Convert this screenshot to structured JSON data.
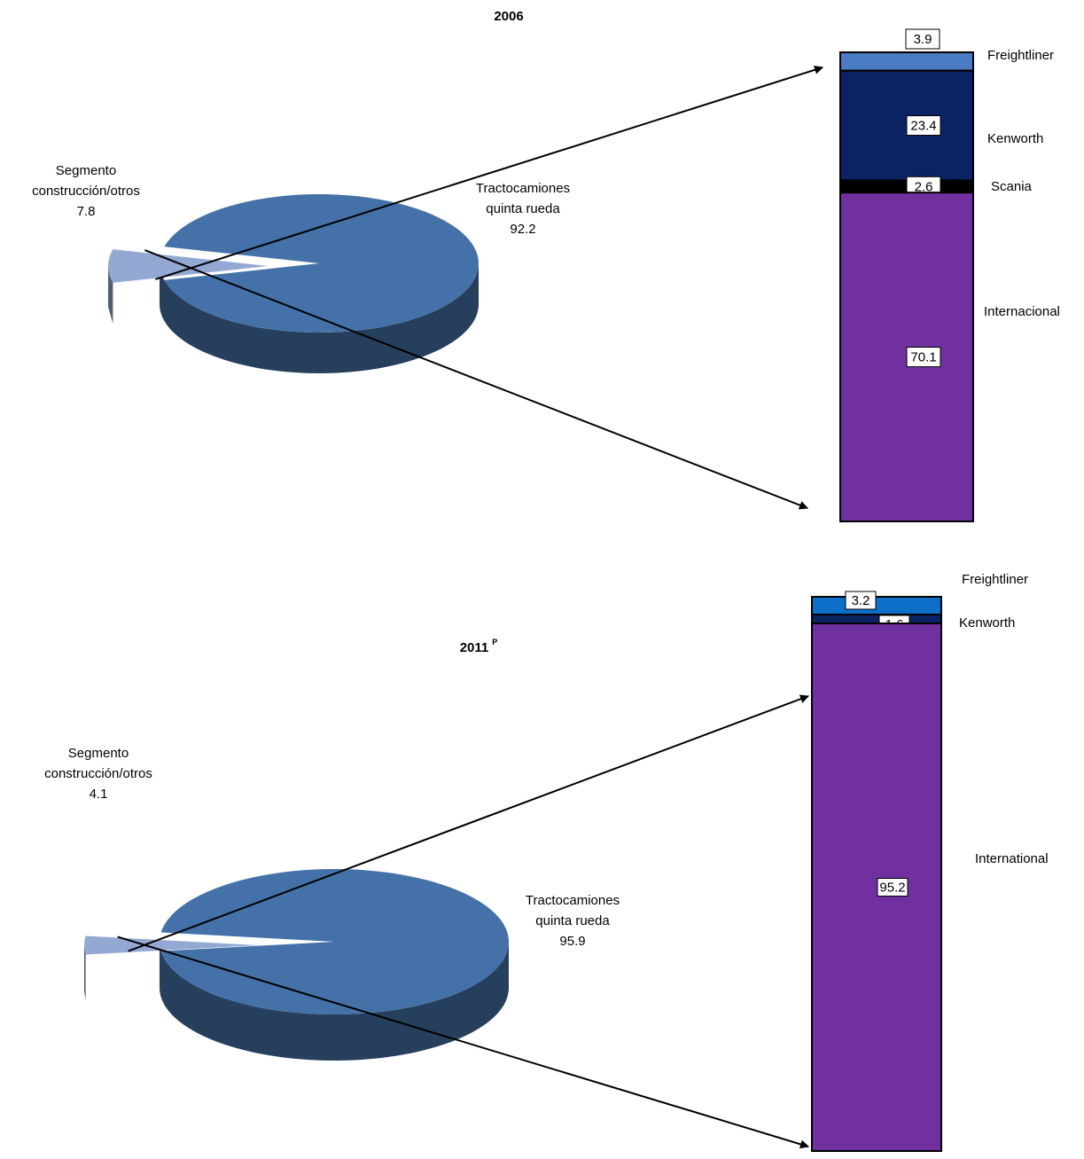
{
  "chart_data": [
    {
      "type": "pie",
      "title": "2006",
      "title_superscript": "",
      "slices": [
        {
          "name_lines": [
            "Tractocamiones",
            "quinta rueda"
          ],
          "value": 92.2,
          "color": "#4472a8"
        },
        {
          "name_lines": [
            "Segmento",
            "construcción/otros"
          ],
          "value": 7.8,
          "color": "#94a8d4",
          "exploded": true
        }
      ],
      "breakdown": {
        "type": "stacked-bar",
        "segments": [
          {
            "name": "Freightliner",
            "value": 3.9,
            "color": "#4a7cc4"
          },
          {
            "name": "Kenworth",
            "value": 23.4,
            "color": "#0c2363"
          },
          {
            "name": "Scania",
            "value": 2.6,
            "color": "#000000"
          },
          {
            "name": "Internacional",
            "value": 70.1,
            "color": "#7030a0"
          }
        ]
      }
    },
    {
      "type": "pie",
      "title": "2011",
      "title_superscript": "P",
      "slices": [
        {
          "name_lines": [
            "Tractocamiones",
            "quinta rueda"
          ],
          "value": 95.9,
          "color": "#4472a8"
        },
        {
          "name_lines": [
            "Segmento",
            "construcción/otros"
          ],
          "value": 4.1,
          "color": "#94a8d4",
          "exploded": true
        }
      ],
      "breakdown": {
        "type": "stacked-bar",
        "segments": [
          {
            "name": "Freightliner",
            "value": 3.2,
            "color": "#0d6fc8"
          },
          {
            "name": "Kenworth",
            "value": 1.6,
            "color": "#0c2363"
          },
          {
            "name": "International",
            "value": 95.2,
            "color": "#7030a0"
          }
        ]
      }
    }
  ]
}
